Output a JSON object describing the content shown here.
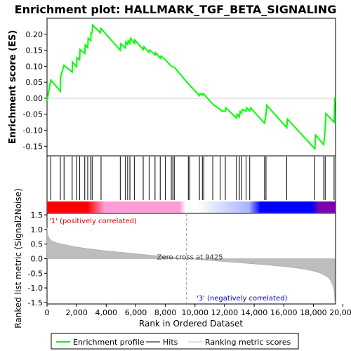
{
  "chart_data": {
    "type": "line",
    "title": "Enrichment plot: HALLMARK_TGF_BETA_SIGNALING",
    "es_panel": {
      "ylabel": "Enrichment score (ES)",
      "ylim": [
        -0.18,
        0.25
      ],
      "yticks": [
        "0.20",
        "0.15",
        "0.10",
        "0.05",
        "0.00",
        "-0.05",
        "-0.10",
        "-0.15"
      ],
      "ytick_values": [
        0.2,
        0.15,
        0.1,
        0.05,
        0.0,
        -0.05,
        -0.1,
        -0.15
      ],
      "series": [
        {
          "name": "Enrichment profile",
          "color": "#00ff00",
          "x": [
            0,
            250,
            900,
            920,
            1150,
            1700,
            1720,
            2000,
            2020,
            2200,
            2230,
            2550,
            2580,
            2750,
            2780,
            2950,
            2980,
            3050,
            3080,
            3600,
            3650,
            4950,
            4980,
            5300,
            5330,
            5450,
            5480,
            5600,
            5630,
            5900,
            5930,
            6500,
            6550,
            6900,
            6950,
            7300,
            7350,
            7650,
            7700,
            8000,
            8400,
            8600,
            9500,
            10300,
            10350,
            10500,
            10550,
            11200,
            11300,
            11700,
            11800,
            12050,
            12100,
            12800,
            12850,
            13000,
            13050,
            13150,
            13200,
            13450,
            13500,
            13700,
            13750,
            14700,
            14750,
            14800,
            14850,
            16200,
            16250,
            18100,
            18150,
            18700,
            18750,
            18800,
            18850,
            19400,
            19450
          ],
          "y": [
            -0.008,
            0.057,
            0.022,
            0.068,
            0.103,
            0.082,
            0.113,
            0.098,
            0.127,
            0.12,
            0.152,
            0.14,
            0.167,
            0.158,
            0.188,
            0.18,
            0.205,
            0.205,
            0.229,
            0.205,
            0.218,
            0.15,
            0.17,
            0.157,
            0.176,
            0.168,
            0.18,
            0.172,
            0.188,
            0.172,
            0.182,
            0.152,
            0.161,
            0.143,
            0.151,
            0.135,
            0.142,
            0.125,
            0.132,
            0.12,
            0.1,
            0.097,
            0.048,
            0.008,
            0.014,
            0.01,
            0.015,
            -0.018,
            -0.022,
            -0.035,
            -0.04,
            -0.04,
            -0.03,
            -0.062,
            -0.05,
            -0.058,
            -0.042,
            -0.046,
            -0.035,
            -0.04,
            -0.03,
            -0.04,
            -0.03,
            -0.078,
            -0.065,
            -0.05,
            -0.022,
            -0.092,
            -0.065,
            -0.158,
            -0.115,
            -0.145,
            -0.12,
            -0.095,
            -0.048,
            -0.075,
            0.003
          ]
        }
      ]
    },
    "hits_panel": {
      "series_name": "Hits",
      "positions": [
        250,
        900,
        1150,
        1700,
        2000,
        2200,
        2550,
        2750,
        2950,
        3050,
        3650,
        4950,
        5300,
        5450,
        5600,
        5900,
        6500,
        6900,
        7300,
        7650,
        8000,
        8400,
        8500,
        8600,
        9550,
        9650,
        10300,
        10500,
        10600,
        11200,
        11700,
        12050,
        12800,
        13000,
        13150,
        13450,
        13700,
        14700,
        14800,
        16200,
        18100,
        18700,
        18800,
        19400
      ]
    },
    "heat_bar": {
      "colors": [
        "#ff0000",
        "#ff9ed6",
        "#ffffff",
        "#a8b4ff",
        "#0000ff",
        "#7a00b0"
      ]
    },
    "metric_panel": {
      "ylabel": "Ranked list metric (Signal2Noise)",
      "ylim": [
        -1.55,
        1.55
      ],
      "yticks": [
        "1.5",
        "1.0",
        "0.5",
        "0.0",
        "-0.5",
        "-1.0",
        "-1.5"
      ],
      "ytick_values": [
        1.5,
        1.0,
        0.5,
        0.0,
        -0.5,
        -1.0,
        -1.5
      ],
      "series_name": "Ranking metric scores",
      "x": [
        0,
        20,
        60,
        150,
        300,
        600,
        1000,
        2000,
        3000,
        4000,
        5000,
        6000,
        7000,
        8000,
        9000,
        9425,
        10000,
        11000,
        12000,
        13000,
        14000,
        15000,
        16000,
        17000,
        17500,
        18000,
        18500,
        18800,
        19000,
        19200,
        19300,
        19400,
        19450
      ],
      "y": [
        1.06,
        0.95,
        0.8,
        0.7,
        0.62,
        0.55,
        0.5,
        0.4,
        0.33,
        0.27,
        0.22,
        0.17,
        0.12,
        0.07,
        0.02,
        0.0,
        -0.02,
        -0.06,
        -0.1,
        -0.14,
        -0.18,
        -0.22,
        -0.27,
        -0.33,
        -0.37,
        -0.42,
        -0.5,
        -0.58,
        -0.65,
        -0.78,
        -0.9,
        -1.1,
        -1.45
      ],
      "zero_cross_label": "Zero cross at 9425",
      "zero_cross": 9425,
      "pos_label": "'1' (positively correlated)",
      "neg_label": "'3' (negatively correlated)"
    },
    "xaxis": {
      "xlabel": "Rank in Ordered Dataset",
      "xlim": [
        0,
        19500
      ],
      "xticks": [
        "0",
        "2,000",
        "4,000",
        "6,000",
        "8,000",
        "10,000",
        "12,000",
        "14,000",
        "16,000",
        "18,000",
        "20,000"
      ],
      "xtick_values": [
        0,
        2000,
        4000,
        6000,
        8000,
        10000,
        12000,
        14000,
        16000,
        18000,
        20000
      ]
    },
    "legend": {
      "placement": "bottom",
      "entries": [
        {
          "label": "Enrichment profile",
          "color": "#00ff00"
        },
        {
          "label": "Hits",
          "color": "#000000"
        },
        {
          "label": "Ranking metric scores",
          "color": "#c0c0c0"
        }
      ]
    },
    "grid": false
  }
}
